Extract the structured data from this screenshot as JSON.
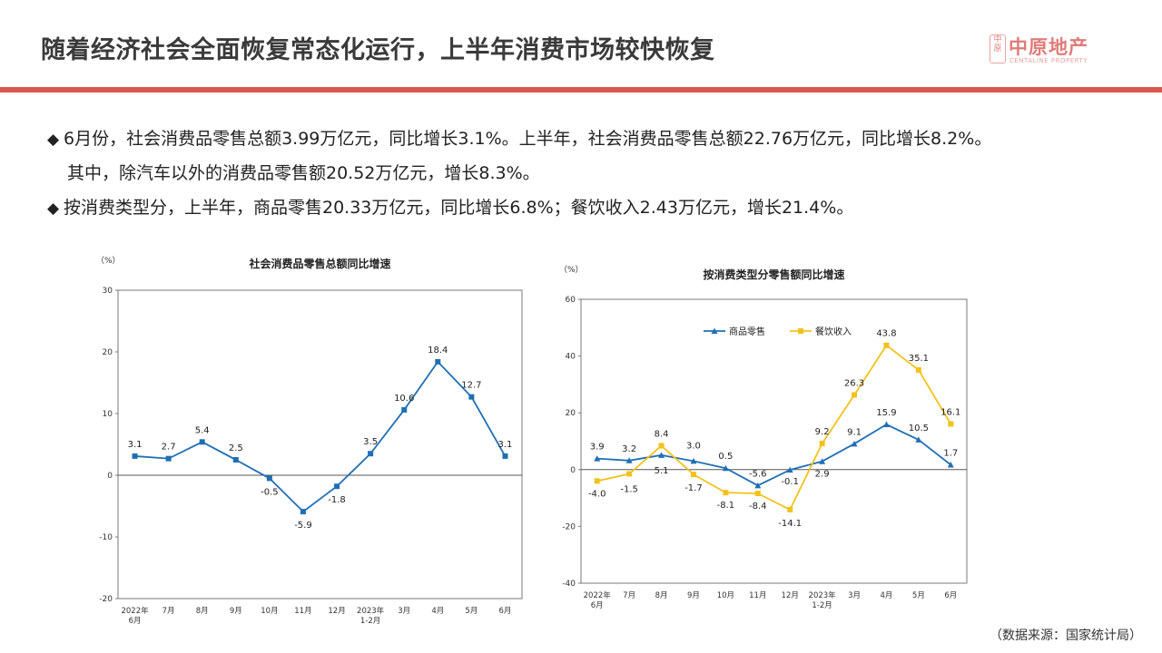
{
  "header": {
    "title": "随着经济社会全面恢复常态化运行，上半年消费市场较快恢复",
    "logo_cn": "中原地产",
    "logo_en": "CENTALINE PROPERTY",
    "logo_mark": "中原",
    "accent_color": "#d9584e"
  },
  "bullets": {
    "b1_line1": "6月份，社会消费品零售总额3.99万亿元，同比增长3.1%。上半年，社会消费品零售总额22.76万亿元，同比增长8.2%。",
    "b1_line2": "其中，除汽车以外的消费品零售额20.52万亿元，增长8.3%。",
    "b2": "按消费类型分，上半年，商品零售20.33万亿元，同比增长6.8%；餐饮收入2.43万亿元，增长21.4%。",
    "marker": "◆"
  },
  "source": "（数据来源：国家统计局）",
  "chart_data": [
    {
      "type": "line",
      "title": "社会消费品零售总额同比增速",
      "ylabel": "（%）",
      "ylim": [
        -20,
        30
      ],
      "yticks": [
        -20,
        -10,
        0,
        10,
        20,
        30
      ],
      "categories": [
        "2022年6月",
        "7月",
        "8月",
        "9月",
        "10月",
        "11月",
        "12月",
        "2023年1-2月",
        "3月",
        "4月",
        "5月",
        "6月"
      ],
      "series": [
        {
          "name": "",
          "color": "#1f6fb5",
          "values": [
            3.1,
            2.7,
            5.4,
            2.5,
            -0.5,
            -5.9,
            -1.8,
            3.5,
            10.6,
            18.4,
            12.7,
            3.1
          ]
        }
      ]
    },
    {
      "type": "line",
      "title": "按消费类型分零售额同比增速",
      "ylabel": "（%）",
      "ylim": [
        -40,
        60
      ],
      "yticks": [
        -40,
        -20,
        0,
        20,
        40,
        60
      ],
      "legend": "top-left",
      "categories": [
        "2022年6月",
        "7月",
        "8月",
        "9月",
        "10月",
        "11月",
        "12月",
        "2023年1-2月",
        "3月",
        "4月",
        "5月",
        "6月"
      ],
      "series": [
        {
          "name": "商品零售",
          "color": "#1f6fb5",
          "values": [
            3.9,
            3.2,
            5.1,
            3.0,
            0.5,
            -5.6,
            -0.1,
            2.9,
            9.1,
            15.9,
            10.5,
            1.7
          ]
        },
        {
          "name": "餐饮收入",
          "color": "#f2c21b",
          "values": [
            -4.0,
            -1.5,
            8.4,
            -1.7,
            -8.1,
            -8.4,
            -14.1,
            9.2,
            26.3,
            43.8,
            35.1,
            16.1
          ]
        }
      ]
    }
  ]
}
